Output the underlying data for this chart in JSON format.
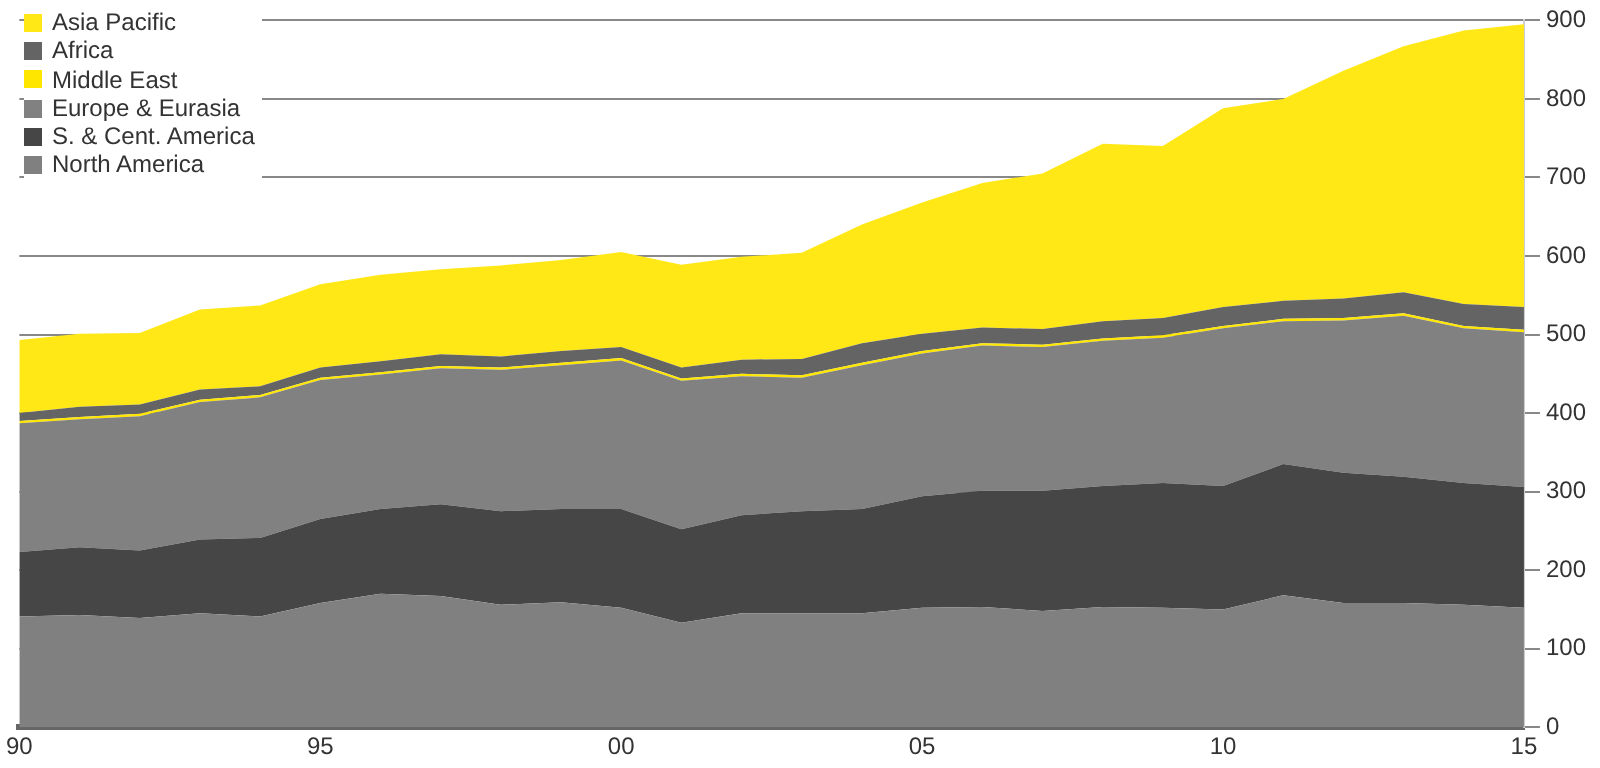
{
  "chart_data": {
    "type": "area",
    "stacked": true,
    "x": [
      1990,
      1991,
      1992,
      1993,
      1994,
      1995,
      1996,
      1997,
      1998,
      1999,
      2000,
      2001,
      2002,
      2003,
      2004,
      2005,
      2006,
      2007,
      2008,
      2009,
      2010,
      2011,
      2012,
      2013,
      2014,
      2015
    ],
    "series": [
      {
        "name": "North America",
        "color": "#808080",
        "values": [
          141,
          143,
          139,
          145,
          141,
          158,
          170,
          167,
          156,
          159,
          152,
          133,
          145,
          145,
          145,
          152,
          153,
          148,
          153,
          152,
          150,
          168,
          158,
          158,
          156,
          152
        ]
      },
      {
        "name": "S. & Cent. America",
        "color": "#464646",
        "values": [
          82,
          86,
          86,
          94,
          100,
          107,
          108,
          117,
          119,
          119,
          126,
          119,
          125,
          130,
          133,
          142,
          148,
          153,
          154,
          159,
          157,
          167,
          166,
          161,
          155,
          154
        ]
      },
      {
        "name": "Europe & Eurasia",
        "color": "#818181",
        "values": [
          164,
          163,
          171,
          175,
          179,
          177,
          171,
          173,
          180,
          183,
          189,
          189,
          177,
          170,
          183,
          182,
          185,
          183,
          185,
          185,
          201,
          182,
          194,
          205,
          197,
          197
        ]
      },
      {
        "name": "Middle East",
        "color": "#ffe600",
        "values": [
          3,
          3,
          3,
          3,
          3,
          3,
          3,
          3,
          3,
          3,
          3,
          3,
          3,
          3,
          3,
          3,
          3,
          3,
          3,
          3,
          3,
          3,
          3,
          3,
          3,
          3
        ]
      },
      {
        "name": "Africa",
        "color": "#646464",
        "values": [
          10,
          13,
          12,
          13,
          11,
          13,
          14,
          15,
          14,
          15,
          14,
          14,
          18,
          21,
          25,
          22,
          20,
          20,
          22,
          22,
          24,
          23,
          25,
          27,
          28,
          29
        ]
      },
      {
        "name": "Asia Pacific",
        "color": "#ffe815",
        "values": [
          93,
          93,
          91,
          102,
          103,
          106,
          110,
          108,
          116,
          116,
          121,
          131,
          131,
          135,
          151,
          167,
          184,
          198,
          226,
          219,
          253,
          257,
          290,
          313,
          348,
          360
        ]
      }
    ],
    "xlim": [
      1990,
      2015
    ],
    "xticks": [
      {
        "value": 1990,
        "label": "90"
      },
      {
        "value": 1995,
        "label": "95"
      },
      {
        "value": 2000,
        "label": "00"
      },
      {
        "value": 2005,
        "label": "05"
      },
      {
        "value": 2010,
        "label": "10"
      },
      {
        "value": 2015,
        "label": "15"
      }
    ],
    "ylim": [
      0,
      900
    ],
    "yticks": [
      0,
      100,
      200,
      300,
      400,
      500,
      600,
      700,
      800,
      900
    ],
    "grid": "y",
    "legend": "top left"
  }
}
